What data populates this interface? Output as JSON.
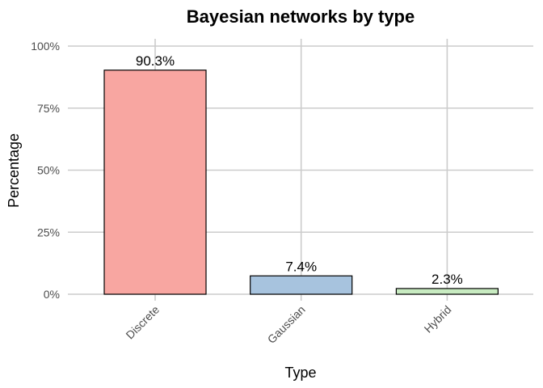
{
  "chart_data": {
    "type": "bar",
    "title": "Bayesian networks by type",
    "xlabel": "Type",
    "ylabel": "Percentage",
    "categories": [
      "Discrete",
      "Gaussian",
      "Hybrid"
    ],
    "values": [
      90.3,
      7.4,
      2.3
    ],
    "data_labels": [
      "90.3%",
      "7.4%",
      "2.3%"
    ],
    "colors": [
      "#F8A6A1",
      "#A7C3DE",
      "#C8EBC1"
    ],
    "ylim": [
      0,
      100
    ],
    "yticks": [
      0,
      25,
      50,
      75,
      100
    ],
    "ytick_labels": [
      "0%",
      "25%",
      "50%",
      "75%",
      "100%"
    ],
    "grid": true,
    "legend": "none"
  }
}
